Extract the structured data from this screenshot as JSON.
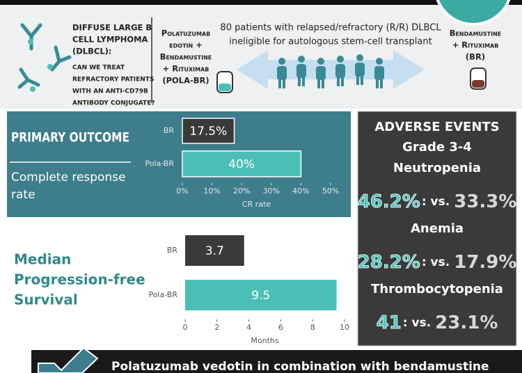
{
  "header": {
    "intro_lines": [
      "DIFFUSE LARGE B",
      "CELL LYMPHOMA",
      "(DLBCL):",
      "CAN WE TREAT",
      "REFRACTORY PATIENTS",
      "WITH AN ANTI-CD79B",
      "ANTIBODY CONJUGATE?"
    ],
    "arm_a_lines": [
      "Polatuzumab",
      "edotin +",
      "Bendamustine",
      "+ Rituximab",
      "(POLA-BR)"
    ],
    "population_lines": [
      "80 patients with relapsed/refractory (R/R) DLBCL",
      "ineligible for autologous stem-cell transplant"
    ],
    "arm_b_lines": [
      "Bendamustine",
      "+ Rituximab",
      "(BR)"
    ]
  },
  "chart_data": [
    {
      "type": "bar",
      "title": "PRIMARY OUTCOME",
      "subtitle_lines": [
        "Complete response",
        "rate"
      ],
      "categories": [
        "BR",
        "Pola-BR"
      ],
      "values": [
        17.5,
        40
      ],
      "value_labels": [
        "17.5%",
        "40%"
      ],
      "colors": [
        "#3a3a3a",
        "#4bbfb5"
      ],
      "xlabel": "CR rate",
      "xlim": [
        0,
        50
      ],
      "xticks": [
        {
          "value": 0,
          "label": "0%"
        },
        {
          "value": 10,
          "label": "10%"
        },
        {
          "value": 20,
          "label": "20%"
        },
        {
          "value": 30,
          "label": "30%"
        },
        {
          "value": 40,
          "label": "40%"
        },
        {
          "value": 50,
          "label": "50%"
        }
      ]
    },
    {
      "type": "bar",
      "title_lines": [
        "Median",
        "Progression-free",
        "Survival"
      ],
      "categories": [
        "BR",
        "Pola-BR"
      ],
      "values": [
        3.7,
        9.5
      ],
      "colors": [
        "#3a3a3a",
        "#4bbfb5"
      ],
      "xlabel": "Months",
      "xlim": [
        0,
        10
      ],
      "xticks": [
        0,
        2,
        4,
        6,
        8,
        10
      ]
    }
  ],
  "adverse_events": {
    "title": "ADVERSE EVENTS",
    "grade": "Grade 3-4",
    "items": [
      {
        "name": "Neutropenia",
        "pola": "46.2%",
        "sep": ": vs.",
        "br": "33.3%"
      },
      {
        "name": "Anemia",
        "pola": "28.2%",
        "sep": ": vs.",
        "br": "17.9%"
      },
      {
        "name": "Thrombocytopenia",
        "pola": "41",
        "sep": ": vs.",
        "br": "23.1%"
      }
    ]
  },
  "footer": {
    "text": "Polatuzumab vedotin in combination with bendamustine"
  }
}
